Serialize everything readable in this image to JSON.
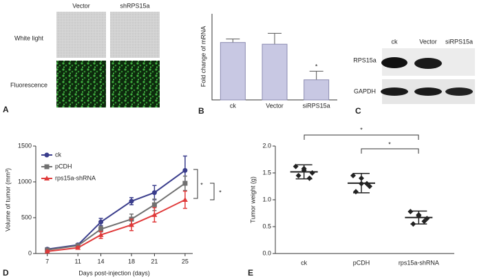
{
  "panel_a": {
    "label": "A",
    "columns": [
      "Vector",
      "shRPS15a"
    ],
    "rows": [
      "White light",
      "Fluorescence"
    ]
  },
  "panel_c": {
    "label": "C",
    "lanes": [
      "ck",
      "Vector",
      "siRPS15a"
    ],
    "proteins": [
      "RPS15a",
      "GAPDH"
    ]
  },
  "chart_data": [
    {
      "type": "bar",
      "panel_label": "B",
      "y_label": "Fold change of mRNA",
      "categories": [
        "ck",
        "Vector",
        "siRPS15a"
      ],
      "values": [
        1.0,
        0.97,
        0.35
      ],
      "errors": [
        0.06,
        0.19,
        0.15
      ],
      "color": "#c8c8e3",
      "ylim": [
        0,
        1.5
      ],
      "annotation": "*"
    },
    {
      "type": "line",
      "panel_label": "D",
      "x_label": "Days post-injection (days)",
      "y_label": "Volume of tumor (mm³)",
      "x": [
        7,
        11,
        14,
        18,
        21,
        25
      ],
      "xlim": [
        5.5,
        26
      ],
      "xticks": [
        7,
        11,
        14,
        18,
        21,
        25
      ],
      "ylim": [
        0,
        1500
      ],
      "yticks": [
        0,
        500,
        1000,
        1500
      ],
      "series": [
        {
          "name": "ck",
          "color": "#3a3d8c",
          "marker": "circle",
          "values": [
            60,
            120,
            440,
            730,
            850,
            1160
          ],
          "errors": [
            20,
            20,
            50,
            50,
            100,
            200
          ]
        },
        {
          "name": "pCDH",
          "color": "#707070",
          "marker": "square",
          "values": [
            50,
            110,
            340,
            480,
            680,
            980
          ],
          "errors": [
            15,
            20,
            40,
            70,
            80,
            100
          ]
        },
        {
          "name": "rps15a-shRNA",
          "color": "#e03a3a",
          "marker": "triangle",
          "values": [
            30,
            80,
            260,
            400,
            540,
            750
          ],
          "errors": [
            15,
            20,
            50,
            80,
            100,
            120
          ]
        }
      ],
      "annotations": [
        "*",
        "*"
      ]
    },
    {
      "type": "dot",
      "panel_label": "E",
      "y_label": "Tumor weight (g)",
      "categories": [
        "ck",
        "pCDH",
        "rps15a-shRNA"
      ],
      "values": [
        [
          1.62,
          1.55,
          1.5,
          1.45,
          1.4,
          1.58
        ],
        [
          1.45,
          1.3,
          1.25,
          1.15,
          1.3,
          1.4
        ],
        [
          0.78,
          0.7,
          0.65,
          0.55,
          0.6,
          0.72
        ]
      ],
      "means": [
        1.52,
        1.31,
        0.67
      ],
      "sd": [
        0.13,
        0.18,
        0.12
      ],
      "ylim": [
        0,
        2.0
      ],
      "yticks": [
        {
          "value": 0,
          "label": "0.0"
        },
        {
          "value": 0.5,
          "label": "0.5"
        },
        {
          "value": 1.0,
          "label": "1.0"
        },
        {
          "value": 1.5,
          "label": "1.5"
        },
        {
          "value": 2.0,
          "label": "2.0"
        }
      ],
      "color": "#222222",
      "annotations": [
        "*",
        "*"
      ]
    }
  ]
}
